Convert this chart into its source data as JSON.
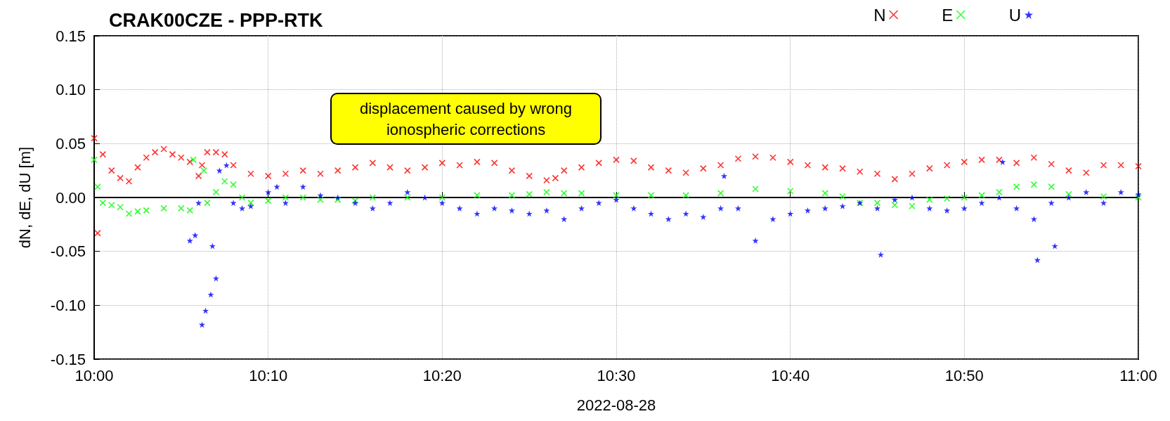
{
  "chart_data": {
    "type": "scatter",
    "title": "CRAK00CZE - PPP-RTK",
    "xlabel": "2022-08-28",
    "ylabel": "dN, dE, dU [m]",
    "annotations": [
      "displacement caused by wrong\nionospheric corrections"
    ],
    "xlim": [
      10,
      11
    ],
    "xticks": [
      {
        "value": 10,
        "label": "10:00"
      },
      {
        "value": 10.1667,
        "label": "10:10"
      },
      {
        "value": 10.3333,
        "label": "10:20"
      },
      {
        "value": 10.5,
        "label": "10:30"
      },
      {
        "value": 10.6667,
        "label": "10:40"
      },
      {
        "value": 10.8333,
        "label": "10:50"
      },
      {
        "value": 11,
        "label": "11:00"
      }
    ],
    "ylim": [
      -0.15,
      0.15
    ],
    "yticks": [
      {
        "value": -0.15,
        "label": "-0.15"
      },
      {
        "value": -0.1,
        "label": "-0.10"
      },
      {
        "value": -0.05,
        "label": "-0.05"
      },
      {
        "value": 0,
        "label": "0.00"
      },
      {
        "value": 0.05,
        "label": "0.05"
      },
      {
        "value": 0.1,
        "label": "0.10"
      },
      {
        "value": 0.15,
        "label": "0.15"
      }
    ],
    "grid": true,
    "legend": "top right",
    "series": [
      {
        "name": "N",
        "color": "#ff0000",
        "marker": "cross",
        "x": [
          10,
          10.0033,
          10.0083,
          10.0167,
          10.025,
          10.0333,
          10.0417,
          10.05,
          10.0583,
          10.0667,
          10.075,
          10.0833,
          10.0917,
          10.1,
          10.1033,
          10.1083,
          10.1167,
          10.125,
          10.1333,
          10.15,
          10.1667,
          10.1833,
          10.2,
          10.2167,
          10.2333,
          10.25,
          10.2667,
          10.2833,
          10.3,
          10.3167,
          10.3333,
          10.35,
          10.3667,
          10.3833,
          10.4,
          10.4167,
          10.4333,
          10.4417,
          10.45,
          10.4667,
          10.4833,
          10.5,
          10.5167,
          10.5333,
          10.55,
          10.5667,
          10.5833,
          10.6,
          10.6167,
          10.6333,
          10.65,
          10.6667,
          10.6833,
          10.7,
          10.7167,
          10.7333,
          10.75,
          10.7667,
          10.7833,
          10.8,
          10.8167,
          10.8333,
          10.85,
          10.8667,
          10.8833,
          10.9,
          10.9167,
          10.9333,
          10.95,
          10.9667,
          10.9833,
          11
        ],
        "values": [
          0.055,
          -0.033,
          0.04,
          0.025,
          0.018,
          0.015,
          0.028,
          0.037,
          0.042,
          0.045,
          0.04,
          0.037,
          0.033,
          0.02,
          0.03,
          0.042,
          0.042,
          0.04,
          0.03,
          0.022,
          0.02,
          0.022,
          0.025,
          0.022,
          0.025,
          0.028,
          0.032,
          0.028,
          0.025,
          0.028,
          0.032,
          0.03,
          0.033,
          0.032,
          0.025,
          0.02,
          0.016,
          0.018,
          0.025,
          0.028,
          0.032,
          0.035,
          0.034,
          0.028,
          0.025,
          0.023,
          0.027,
          0.03,
          0.036,
          0.038,
          0.037,
          0.033,
          0.03,
          0.028,
          0.027,
          0.024,
          0.022,
          0.017,
          0.022,
          0.027,
          0.03,
          0.033,
          0.035,
          0.035,
          0.032,
          0.037,
          0.031,
          0.025,
          0.023,
          0.03,
          0.03,
          0.029
        ]
      },
      {
        "name": "E",
        "color": "#00ff00",
        "marker": "cross",
        "x": [
          10,
          10.0033,
          10.0083,
          10.0167,
          10.025,
          10.0333,
          10.0417,
          10.05,
          10.0667,
          10.0833,
          10.0917,
          10.095,
          10.105,
          10.1083,
          10.1167,
          10.125,
          10.1333,
          10.1417,
          10.15,
          10.1667,
          10.1833,
          10.2,
          10.2167,
          10.2333,
          10.25,
          10.2667,
          10.3,
          10.3333,
          10.3667,
          10.4,
          10.4167,
          10.4333,
          10.45,
          10.4667,
          10.5,
          10.5333,
          10.5667,
          10.6,
          10.6333,
          10.6667,
          10.7,
          10.7167,
          10.7333,
          10.75,
          10.7667,
          10.7833,
          10.8,
          10.8167,
          10.8333,
          10.85,
          10.8667,
          10.8833,
          10.9,
          10.9167,
          10.9333,
          10.9667,
          11
        ],
        "values": [
          0.035,
          0.01,
          -0.005,
          -0.007,
          -0.009,
          -0.015,
          -0.013,
          -0.012,
          -0.01,
          -0.01,
          -0.012,
          0.035,
          0.025,
          -0.005,
          0.005,
          0.015,
          0.012,
          0,
          -0.005,
          -0.003,
          0,
          0,
          -0.002,
          -0.002,
          -0.003,
          0,
          0,
          0,
          0.002,
          0.002,
          0.003,
          0.005,
          0.004,
          0.004,
          0.002,
          0.002,
          0.002,
          0.004,
          0.008,
          0.006,
          0.004,
          0.001,
          -0.005,
          -0.005,
          -0.007,
          -0.008,
          -0.002,
          -0.001,
          0,
          0.002,
          0.005,
          0.01,
          0.012,
          0.01,
          0.003,
          0.001,
          0
        ]
      },
      {
        "name": "U",
        "color": "#0000ff",
        "marker": "star",
        "x": [
          10.0917,
          10.0967,
          10.1,
          10.1033,
          10.1067,
          10.1117,
          10.1133,
          10.1167,
          10.12,
          10.1267,
          10.1333,
          10.1417,
          10.15,
          10.1667,
          10.175,
          10.1833,
          10.2,
          10.2167,
          10.2333,
          10.25,
          10.2667,
          10.2833,
          10.3,
          10.3167,
          10.3333,
          10.35,
          10.3667,
          10.3833,
          10.4,
          10.4167,
          10.4333,
          10.45,
          10.4667,
          10.4833,
          10.5,
          10.5167,
          10.5333,
          10.55,
          10.5667,
          10.5833,
          10.6,
          10.6033,
          10.6167,
          10.6333,
          10.65,
          10.6667,
          10.6833,
          10.7,
          10.7167,
          10.7333,
          10.75,
          10.7533,
          10.7667,
          10.7833,
          10.8,
          10.8167,
          10.8333,
          10.85,
          10.8667,
          10.87,
          10.8833,
          10.9,
          10.9033,
          10.9167,
          10.92,
          10.9333,
          10.95,
          10.9667,
          10.9833,
          11
        ],
        "values": [
          -0.04,
          -0.035,
          -0.005,
          -0.118,
          -0.105,
          -0.09,
          -0.045,
          -0.075,
          0.025,
          0.03,
          -0.005,
          -0.01,
          -0.008,
          0.005,
          0.01,
          -0.005,
          0.01,
          0.002,
          0,
          -0.005,
          -0.01,
          -0.005,
          0.005,
          0,
          -0.005,
          -0.01,
          -0.015,
          -0.01,
          -0.012,
          -0.015,
          -0.012,
          -0.02,
          -0.01,
          -0.005,
          -0.002,
          -0.01,
          -0.015,
          -0.02,
          -0.015,
          -0.018,
          -0.01,
          0.02,
          -0.01,
          -0.04,
          -0.02,
          -0.015,
          -0.012,
          -0.01,
          -0.008,
          -0.005,
          -0.01,
          -0.053,
          -0.002,
          0,
          -0.01,
          -0.012,
          -0.01,
          -0.005,
          0,
          0.033,
          -0.01,
          -0.02,
          -0.058,
          -0.005,
          -0.045,
          0,
          0.005,
          -0.005,
          0.005,
          0.003
        ]
      }
    ]
  }
}
